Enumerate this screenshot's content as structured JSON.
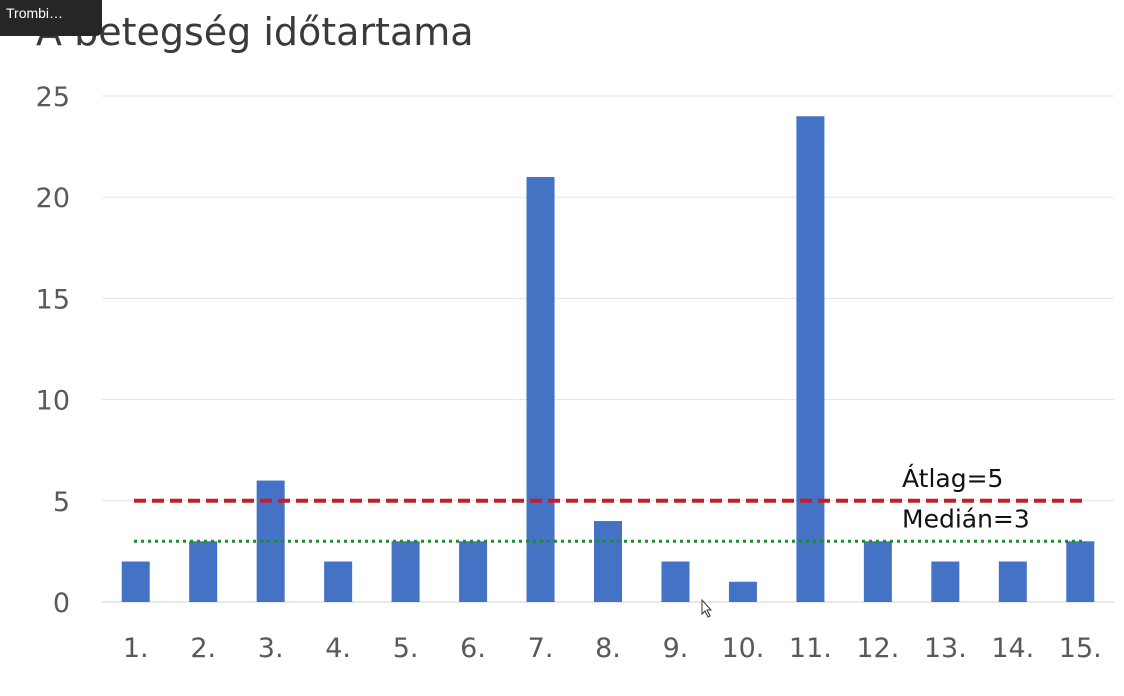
{
  "badge": {
    "label": "Trombi…"
  },
  "chart_data": {
    "type": "bar",
    "title": "A betegség időtartama",
    "categories": [
      "1.",
      "2.",
      "3.",
      "4.",
      "5.",
      "6.",
      "7.",
      "8.",
      "9.",
      "10.",
      "11.",
      "12.",
      "13.",
      "14.",
      "15."
    ],
    "values": [
      2,
      3,
      6,
      2,
      3,
      3,
      21,
      4,
      2,
      1,
      24,
      3,
      2,
      2,
      3
    ],
    "ylim": [
      0,
      25
    ],
    "yticks": [
      0,
      5,
      10,
      15,
      20,
      25
    ],
    "grid": true,
    "bar_color": "#4472c4",
    "reference_lines": [
      {
        "label": "Átlag=5",
        "value": 5,
        "color": "#c0202a",
        "style": "dashed"
      },
      {
        "label": "Medián=3",
        "value": 3,
        "color": "#1e8c32",
        "style": "dotted"
      }
    ]
  }
}
